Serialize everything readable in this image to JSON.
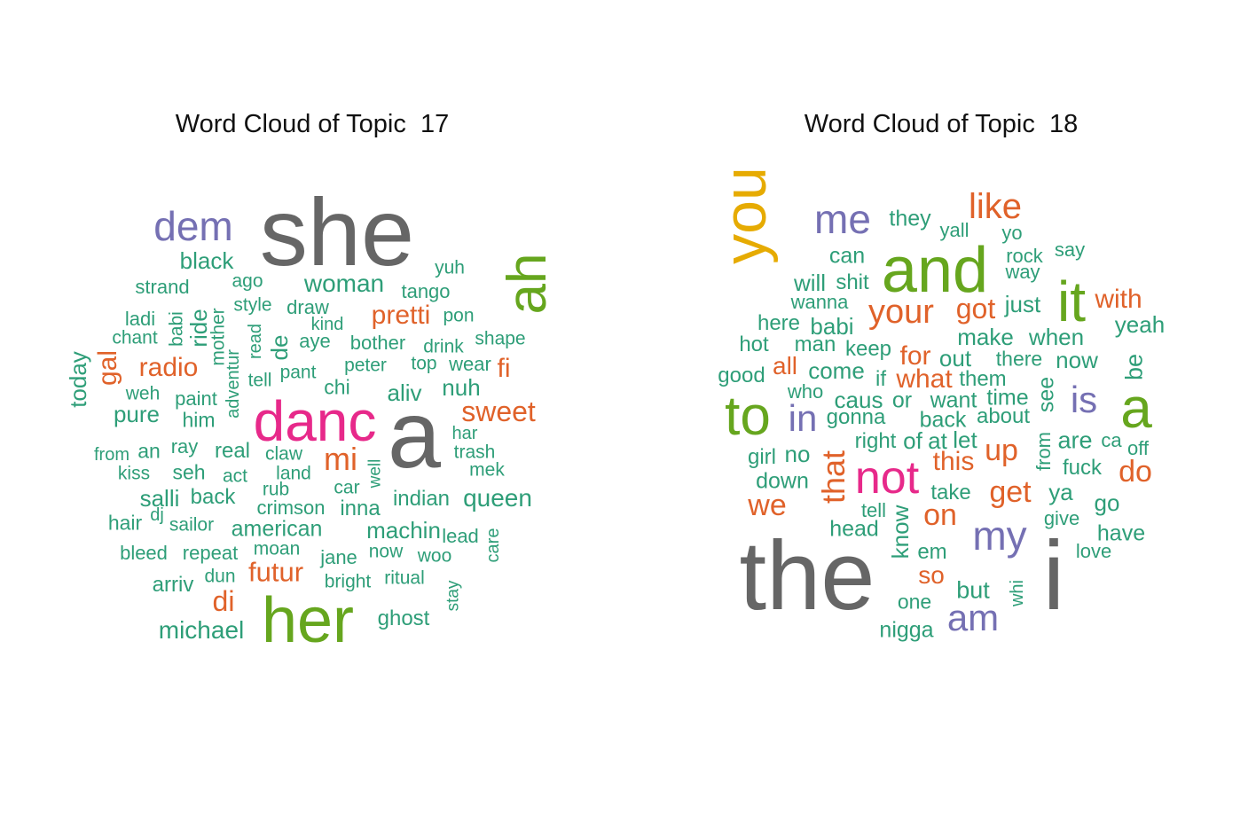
{
  "colors": {
    "teal": "#2e9e78",
    "orange": "#e0622a",
    "purple": "#7570b3",
    "pink": "#e7298a",
    "green": "#66a61e",
    "gold": "#e6ab02",
    "gray": "#666666"
  },
  "chart_data": [
    {
      "type": "wordcloud",
      "title": "Word Cloud of Topic  17",
      "words": [
        {
          "text": "she",
          "c": "gray",
          "w": 10
        },
        {
          "text": "a",
          "c": "gray",
          "w": 10
        },
        {
          "text": "her",
          "c": "green",
          "w": 7
        },
        {
          "text": "danc",
          "c": "pink",
          "w": 6
        },
        {
          "text": "ah",
          "c": "green",
          "w": 5.5
        },
        {
          "text": "dem",
          "c": "purple",
          "w": 4.5
        },
        {
          "text": "sweet",
          "c": "orange",
          "w": 3.2
        },
        {
          "text": "mi",
          "c": "orange",
          "w": 3.2
        },
        {
          "text": "radio",
          "c": "orange",
          "w": 3.0
        },
        {
          "text": "pretti",
          "c": "orange",
          "w": 3.0
        },
        {
          "text": "futur",
          "c": "orange",
          "w": 3.0
        },
        {
          "text": "di",
          "c": "orange",
          "w": 3.0
        },
        {
          "text": "gal",
          "c": "orange",
          "w": 2.8
        },
        {
          "text": "fi",
          "c": "orange",
          "w": 2.8
        },
        {
          "text": "woman",
          "c": "teal",
          "w": 2.8
        },
        {
          "text": "queen",
          "c": "teal",
          "w": 2.8
        },
        {
          "text": "michael",
          "c": "teal",
          "w": 2.8
        },
        {
          "text": "black",
          "c": "teal",
          "w": 2.6
        },
        {
          "text": "nuh",
          "c": "teal",
          "w": 2.6
        },
        {
          "text": "aliv",
          "c": "teal",
          "w": 2.6
        },
        {
          "text": "machin",
          "c": "teal",
          "w": 2.6
        },
        {
          "text": "american",
          "c": "teal",
          "w": 2.6
        },
        {
          "text": "pure",
          "c": "teal",
          "w": 2.6
        },
        {
          "text": "salli",
          "c": "teal",
          "w": 2.6
        },
        {
          "text": "today",
          "c": "teal",
          "w": 2.6
        },
        {
          "text": "ride",
          "c": "teal",
          "w": 2.6
        },
        {
          "text": "de",
          "c": "teal",
          "w": 2.6
        },
        {
          "text": "real",
          "c": "teal",
          "w": 2.5
        },
        {
          "text": "indian",
          "c": "teal",
          "w": 2.5
        },
        {
          "text": "inna",
          "c": "teal",
          "w": 2.5
        },
        {
          "text": "arriv",
          "c": "teal",
          "w": 2.5
        },
        {
          "text": "ghost",
          "c": "teal",
          "w": 2.5
        },
        {
          "text": "back",
          "c": "teal",
          "w": 2.5
        },
        {
          "text": "strand",
          "c": "teal",
          "w": 2.2
        },
        {
          "text": "ago",
          "c": "teal",
          "w": 2.1
        },
        {
          "text": "tango",
          "c": "teal",
          "w": 2.2
        },
        {
          "text": "yuh",
          "c": "teal",
          "w": 2.1
        },
        {
          "text": "ladi",
          "c": "teal",
          "w": 2.2
        },
        {
          "text": "chant",
          "c": "teal",
          "w": 2.1
        },
        {
          "text": "babi",
          "c": "teal",
          "w": 2.1
        },
        {
          "text": "mother",
          "c": "teal",
          "w": 2.1
        },
        {
          "text": "style",
          "c": "teal",
          "w": 2.1
        },
        {
          "text": "draw",
          "c": "teal",
          "w": 2.2
        },
        {
          "text": "kind",
          "c": "teal",
          "w": 2.0
        },
        {
          "text": "pon",
          "c": "teal",
          "w": 2.1
        },
        {
          "text": "shape",
          "c": "teal",
          "w": 2.1
        },
        {
          "text": "aye",
          "c": "teal",
          "w": 2.2
        },
        {
          "text": "bother",
          "c": "teal",
          "w": 2.2
        },
        {
          "text": "drink",
          "c": "teal",
          "w": 2.1
        },
        {
          "text": "read",
          "c": "teal",
          "w": 2.0
        },
        {
          "text": "adventur",
          "c": "teal",
          "w": 2.0
        },
        {
          "text": "peter",
          "c": "teal",
          "w": 2.1
        },
        {
          "text": "top",
          "c": "teal",
          "w": 2.1
        },
        {
          "text": "wear",
          "c": "teal",
          "w": 2.2
        },
        {
          "text": "weh",
          "c": "teal",
          "w": 2.1
        },
        {
          "text": "paint",
          "c": "teal",
          "w": 2.2
        },
        {
          "text": "tell",
          "c": "teal",
          "w": 2.1
        },
        {
          "text": "pant",
          "c": "teal",
          "w": 2.1
        },
        {
          "text": "chi",
          "c": "teal",
          "w": 2.3
        },
        {
          "text": "him",
          "c": "teal",
          "w": 2.3
        },
        {
          "text": "har",
          "c": "teal",
          "w": 2.0
        },
        {
          "text": "trash",
          "c": "teal",
          "w": 2.1
        },
        {
          "text": "mek",
          "c": "teal",
          "w": 2.1
        },
        {
          "text": "from",
          "c": "teal",
          "w": 2.0
        },
        {
          "text": "an",
          "c": "teal",
          "w": 2.3
        },
        {
          "text": "ray",
          "c": "teal",
          "w": 2.2
        },
        {
          "text": "claw",
          "c": "teal",
          "w": 2.1
        },
        {
          "text": "kiss",
          "c": "teal",
          "w": 2.1
        },
        {
          "text": "seh",
          "c": "teal",
          "w": 2.3
        },
        {
          "text": "act",
          "c": "teal",
          "w": 2.1
        },
        {
          "text": "land",
          "c": "teal",
          "w": 2.1
        },
        {
          "text": "well",
          "c": "teal",
          "w": 1.9
        },
        {
          "text": "car",
          "c": "teal",
          "w": 2.1
        },
        {
          "text": "rub",
          "c": "teal",
          "w": 2.1
        },
        {
          "text": "crimson",
          "c": "teal",
          "w": 2.2
        },
        {
          "text": "hair",
          "c": "teal",
          "w": 2.3
        },
        {
          "text": "dj",
          "c": "teal",
          "w": 2.0
        },
        {
          "text": "sailor",
          "c": "teal",
          "w": 2.1
        },
        {
          "text": "lead",
          "c": "teal",
          "w": 2.2
        },
        {
          "text": "care",
          "c": "teal",
          "w": 2.0
        },
        {
          "text": "bleed",
          "c": "teal",
          "w": 2.2
        },
        {
          "text": "repeat",
          "c": "teal",
          "w": 2.2
        },
        {
          "text": "moan",
          "c": "teal",
          "w": 2.1
        },
        {
          "text": "jane",
          "c": "teal",
          "w": 2.2
        },
        {
          "text": "now",
          "c": "teal",
          "w": 2.1
        },
        {
          "text": "woo",
          "c": "teal",
          "w": 2.1
        },
        {
          "text": "dun",
          "c": "teal",
          "w": 2.1
        },
        {
          "text": "bright",
          "c": "teal",
          "w": 2.1
        },
        {
          "text": "ritual",
          "c": "teal",
          "w": 2.1
        },
        {
          "text": "stay",
          "c": "teal",
          "w": 1.9
        }
      ]
    },
    {
      "type": "wordcloud",
      "title": "Word Cloud of Topic  18",
      "words": [
        {
          "text": "the",
          "c": "gray",
          "w": 10
        },
        {
          "text": "i",
          "c": "gray",
          "w": 10
        },
        {
          "text": "and",
          "c": "green",
          "w": 7
        },
        {
          "text": "you",
          "c": "gold",
          "w": 6.5
        },
        {
          "text": "it",
          "c": "green",
          "w": 6
        },
        {
          "text": "a",
          "c": "green",
          "w": 6
        },
        {
          "text": "to",
          "c": "green",
          "w": 6
        },
        {
          "text": "not",
          "c": "pink",
          "w": 5.2
        },
        {
          "text": "me",
          "c": "purple",
          "w": 4.5
        },
        {
          "text": "my",
          "c": "purple",
          "w": 4.5
        },
        {
          "text": "is",
          "c": "purple",
          "w": 4.0
        },
        {
          "text": "in",
          "c": "purple",
          "w": 4.0
        },
        {
          "text": "am",
          "c": "purple",
          "w": 4.0
        },
        {
          "text": "like",
          "c": "orange",
          "w": 4.0
        },
        {
          "text": "your",
          "c": "orange",
          "w": 3.8
        },
        {
          "text": "that",
          "c": "orange",
          "w": 3.6
        },
        {
          "text": "get",
          "c": "orange",
          "w": 3.4
        },
        {
          "text": "do",
          "c": "orange",
          "w": 3.4
        },
        {
          "text": "up",
          "c": "orange",
          "w": 3.4
        },
        {
          "text": "got",
          "c": "orange",
          "w": 3.2
        },
        {
          "text": "we",
          "c": "orange",
          "w": 3.2
        },
        {
          "text": "on",
          "c": "orange",
          "w": 3.2
        },
        {
          "text": "with",
          "c": "orange",
          "w": 3.0
        },
        {
          "text": "this",
          "c": "orange",
          "w": 3.0
        },
        {
          "text": "what",
          "c": "orange",
          "w": 3.0
        },
        {
          "text": "for",
          "c": "orange",
          "w": 3.0
        },
        {
          "text": "all",
          "c": "orange",
          "w": 2.8
        },
        {
          "text": "so",
          "c": "orange",
          "w": 2.8
        },
        {
          "text": "they",
          "c": "teal",
          "w": 2.4
        },
        {
          "text": "yall",
          "c": "teal",
          "w": 2.2
        },
        {
          "text": "yo",
          "c": "teal",
          "w": 2.2
        },
        {
          "text": "rock",
          "c": "teal",
          "w": 2.2
        },
        {
          "text": "say",
          "c": "teal",
          "w": 2.2
        },
        {
          "text": "way",
          "c": "teal",
          "w": 2.2
        },
        {
          "text": "can",
          "c": "teal",
          "w": 2.5
        },
        {
          "text": "will",
          "c": "teal",
          "w": 2.5
        },
        {
          "text": "shit",
          "c": "teal",
          "w": 2.3
        },
        {
          "text": "just",
          "c": "teal",
          "w": 2.6
        },
        {
          "text": "wanna",
          "c": "teal",
          "w": 2.2
        },
        {
          "text": "here",
          "c": "teal",
          "w": 2.3
        },
        {
          "text": "babi",
          "c": "teal",
          "w": 2.5
        },
        {
          "text": "yeah",
          "c": "teal",
          "w": 2.6
        },
        {
          "text": "make",
          "c": "teal",
          "w": 2.5
        },
        {
          "text": "when",
          "c": "teal",
          "w": 2.5
        },
        {
          "text": "hot",
          "c": "teal",
          "w": 2.3
        },
        {
          "text": "man",
          "c": "teal",
          "w": 2.3
        },
        {
          "text": "keep",
          "c": "teal",
          "w": 2.3
        },
        {
          "text": "out",
          "c": "teal",
          "w": 2.5
        },
        {
          "text": "there",
          "c": "teal",
          "w": 2.3
        },
        {
          "text": "now",
          "c": "teal",
          "w": 2.5
        },
        {
          "text": "good",
          "c": "teal",
          "w": 2.3
        },
        {
          "text": "come",
          "c": "teal",
          "w": 2.5
        },
        {
          "text": "if",
          "c": "teal",
          "w": 2.3
        },
        {
          "text": "them",
          "c": "teal",
          "w": 2.3
        },
        {
          "text": "be",
          "c": "teal",
          "w": 2.6
        },
        {
          "text": "who",
          "c": "teal",
          "w": 2.2
        },
        {
          "text": "caus",
          "c": "teal",
          "w": 2.5
        },
        {
          "text": "or",
          "c": "teal",
          "w": 2.4
        },
        {
          "text": "want",
          "c": "teal",
          "w": 2.4
        },
        {
          "text": "time",
          "c": "teal",
          "w": 2.4
        },
        {
          "text": "see",
          "c": "teal",
          "w": 2.4
        },
        {
          "text": "gonna",
          "c": "teal",
          "w": 2.3
        },
        {
          "text": "back",
          "c": "teal",
          "w": 2.5
        },
        {
          "text": "about",
          "c": "teal",
          "w": 2.3
        },
        {
          "text": "right",
          "c": "teal",
          "w": 2.3
        },
        {
          "text": "of",
          "c": "teal",
          "w": 2.5
        },
        {
          "text": "at",
          "c": "teal",
          "w": 2.5
        },
        {
          "text": "let",
          "c": "teal",
          "w": 2.5
        },
        {
          "text": "from",
          "c": "teal",
          "w": 2.2
        },
        {
          "text": "are",
          "c": "teal",
          "w": 2.6
        },
        {
          "text": "ca",
          "c": "teal",
          "w": 2.2
        },
        {
          "text": "off",
          "c": "teal",
          "w": 2.2
        },
        {
          "text": "girl",
          "c": "teal",
          "w": 2.3
        },
        {
          "text": "no",
          "c": "teal",
          "w": 2.5
        },
        {
          "text": "fuck",
          "c": "teal",
          "w": 2.3
        },
        {
          "text": "down",
          "c": "teal",
          "w": 2.4
        },
        {
          "text": "take",
          "c": "teal",
          "w": 2.3
        },
        {
          "text": "ya",
          "c": "teal",
          "w": 2.5
        },
        {
          "text": "tell",
          "c": "teal",
          "w": 2.2
        },
        {
          "text": "go",
          "c": "teal",
          "w": 2.5
        },
        {
          "text": "give",
          "c": "teal",
          "w": 2.2
        },
        {
          "text": "head",
          "c": "teal",
          "w": 2.4
        },
        {
          "text": "know",
          "c": "teal",
          "w": 2.5
        },
        {
          "text": "have",
          "c": "teal",
          "w": 2.4
        },
        {
          "text": "love",
          "c": "teal",
          "w": 2.2
        },
        {
          "text": "em",
          "c": "teal",
          "w": 2.3
        },
        {
          "text": "but",
          "c": "teal",
          "w": 2.6
        },
        {
          "text": "whi",
          "c": "teal",
          "w": 2.0
        },
        {
          "text": "one",
          "c": "teal",
          "w": 2.2
        },
        {
          "text": "nigga",
          "c": "teal",
          "w": 2.4
        }
      ]
    }
  ]
}
